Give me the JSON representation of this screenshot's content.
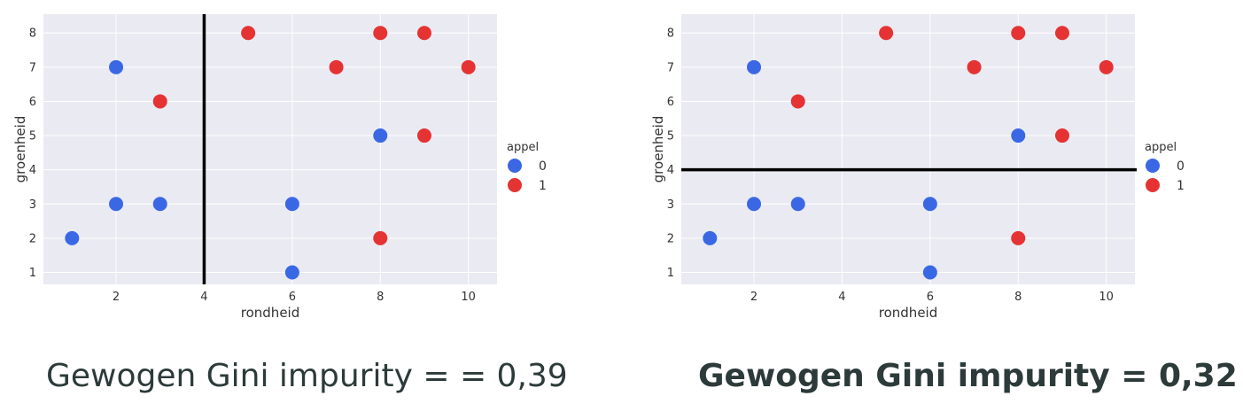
{
  "chart_data": [
    {
      "type": "scatter",
      "xlabel": "rondheid",
      "ylabel": "groenheid",
      "xlim": [
        0.35,
        10.65
      ],
      "ylim": [
        0.65,
        8.55
      ],
      "xticks": [
        2,
        4,
        6,
        8,
        10
      ],
      "yticks": [
        1,
        2,
        3,
        4,
        5,
        6,
        7,
        8
      ],
      "grid": true,
      "legend": {
        "title": "appel",
        "placement": "right",
        "entries": [
          "0",
          "1"
        ]
      },
      "series": [
        {
          "name": "0",
          "color": "#3a68e4",
          "points": [
            [
              2,
              7
            ],
            [
              2,
              3
            ],
            [
              3,
              3
            ],
            [
              1,
              2
            ],
            [
              6,
              3
            ],
            [
              6,
              1
            ],
            [
              8,
              5
            ]
          ]
        },
        {
          "name": "1",
          "color": "#e53333",
          "points": [
            [
              5,
              8
            ],
            [
              8,
              8
            ],
            [
              9,
              8
            ],
            [
              7,
              7
            ],
            [
              10,
              7
            ],
            [
              3,
              6
            ],
            [
              9,
              5
            ],
            [
              8,
              2
            ]
          ]
        }
      ],
      "split": {
        "orientation": "vertical",
        "value": 4
      }
    },
    {
      "type": "scatter",
      "xlabel": "rondheid",
      "ylabel": "groenheid",
      "xlim": [
        0.35,
        10.65
      ],
      "ylim": [
        0.65,
        8.55
      ],
      "xticks": [
        2,
        4,
        6,
        8,
        10
      ],
      "yticks": [
        1,
        2,
        3,
        4,
        5,
        6,
        7,
        8
      ],
      "grid": true,
      "legend": {
        "title": "appel",
        "placement": "right",
        "entries": [
          "0",
          "1"
        ]
      },
      "series": [
        {
          "name": "0",
          "color": "#3a68e4",
          "points": [
            [
              2,
              7
            ],
            [
              2,
              3
            ],
            [
              3,
              3
            ],
            [
              1,
              2
            ],
            [
              6,
              3
            ],
            [
              6,
              1
            ],
            [
              8,
              5
            ]
          ]
        },
        {
          "name": "1",
          "color": "#e53333",
          "points": [
            [
              5,
              8
            ],
            [
              8,
              8
            ],
            [
              9,
              8
            ],
            [
              7,
              7
            ],
            [
              10,
              7
            ],
            [
              3,
              6
            ],
            [
              9,
              5
            ],
            [
              8,
              2
            ]
          ]
        }
      ],
      "split": {
        "orientation": "horizontal",
        "value": 4
      }
    }
  ],
  "captions": {
    "left": "Gewogen Gini impurity = = 0,39",
    "right": "Gewogen Gini impurity = 0,32"
  },
  "colors": {
    "plot_background": "#eaeaf2",
    "grid": "#ffffff",
    "split_line": "#000000"
  }
}
